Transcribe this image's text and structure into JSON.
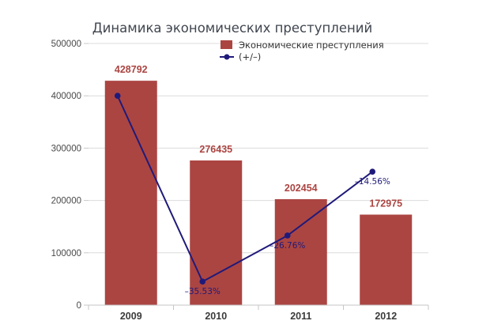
{
  "chart_data": {
    "type": "bar",
    "title": "Динамика экономических преступлений",
    "categories": [
      "2009",
      "2010",
      "2011",
      "2012"
    ],
    "ylim": [
      0,
      500000
    ],
    "y_ticks": [
      "0",
      "100000",
      "200000",
      "300000",
      "400000",
      "500000"
    ],
    "grid": true,
    "legend_position": "top-right",
    "series": [
      {
        "name": "Экономические преступления",
        "type": "bar",
        "values": [
          428792,
          276435,
          202454,
          172975
        ],
        "value_labels": [
          "428792",
          "276435",
          "202454",
          "172975"
        ],
        "color": "#ab4542"
      },
      {
        "name": "(+/–)",
        "type": "line",
        "values": [
          400000,
          45000,
          133000,
          255000
        ],
        "value_labels": [
          "",
          "–35.53%",
          "–26.76%",
          "–14.56%"
        ],
        "color": "#1f1a7a"
      }
    ]
  }
}
